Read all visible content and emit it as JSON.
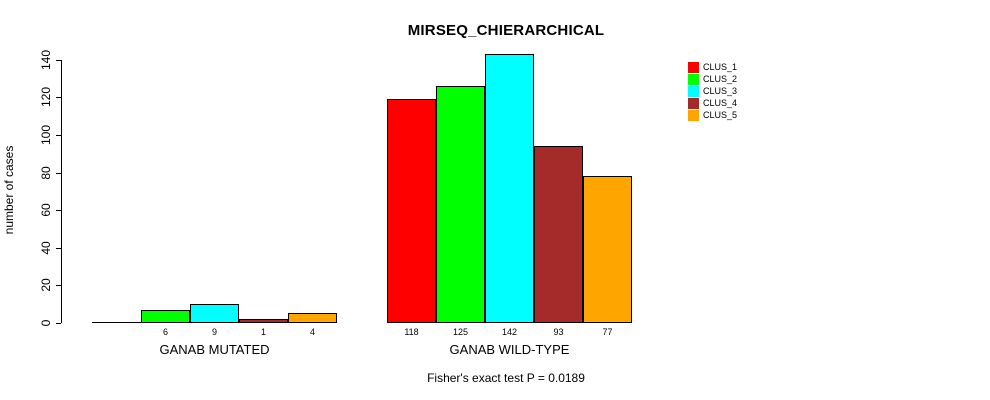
{
  "title": "MIRSEQ_CHIERARCHICAL",
  "chart_data": {
    "type": "bar",
    "title": "MIRSEQ_CHIERARCHICAL",
    "xlabel": "",
    "ylabel": "number of cases",
    "ylim": [
      0,
      140
    ],
    "yticks": [
      0,
      20,
      40,
      60,
      80,
      100,
      120,
      140
    ],
    "grid": false,
    "bar_border_color": "#000000",
    "legend_position": "top-right",
    "value_label_rule": "value printed under each bar only when value > 0",
    "categories": [
      "GANAB MUTATED",
      "GANAB WILD-TYPE"
    ],
    "series": [
      {
        "name": "CLUS_1",
        "color": "#ff0000",
        "values": [
          0,
          118
        ]
      },
      {
        "name": "CLUS_2",
        "color": "#00ff00",
        "values": [
          6,
          125
        ]
      },
      {
        "name": "CLUS_3",
        "color": "#00ffff",
        "values": [
          9,
          142
        ]
      },
      {
        "name": "CLUS_4",
        "color": "#a52a2a",
        "values": [
          1,
          93
        ]
      },
      {
        "name": "CLUS_5",
        "color": "#ffa500",
        "values": [
          4,
          77
        ]
      }
    ],
    "annotation": "Fisher's exact test P = 0.0189"
  }
}
